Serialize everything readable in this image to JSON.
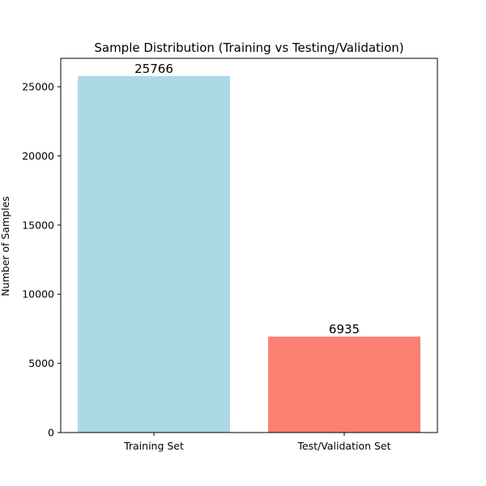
{
  "chart_data": {
    "type": "bar",
    "title": "Sample Distribution (Training vs Testing/Validation)",
    "xlabel": "",
    "ylabel": "Number of Samples",
    "categories": [
      "Training Set",
      "Test/Validation Set"
    ],
    "values": [
      25766,
      6935
    ],
    "data_labels": [
      "25766",
      "6935"
    ],
    "colors": [
      "#add8e6",
      "#fa8072"
    ],
    "ylim": [
      0,
      27055
    ],
    "yticks": [
      0,
      5000,
      10000,
      15000,
      20000,
      25000
    ],
    "ytick_labels": [
      "0",
      "5000",
      "10000",
      "15000",
      "20000",
      "25000"
    ],
    "grid": false,
    "legend": "none"
  }
}
